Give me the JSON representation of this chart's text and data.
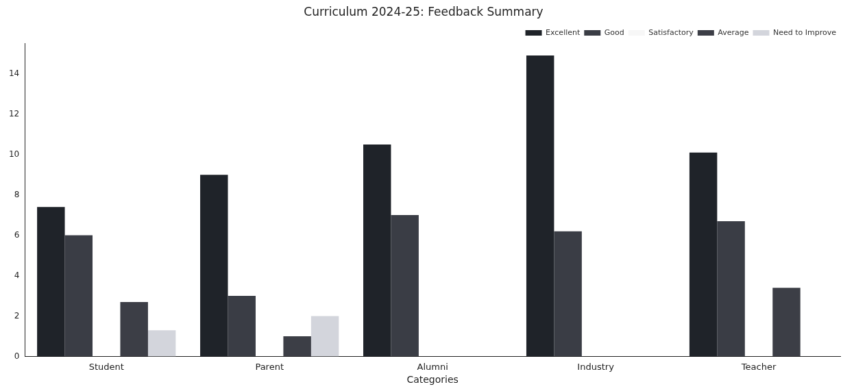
{
  "chart_data": {
    "type": "bar",
    "title": "Curriculum 2024-25: Feedback Summary",
    "xlabel": "Categories",
    "categories": [
      "Student",
      "Parent",
      "Alumni",
      "Industry",
      "Teacher"
    ],
    "series": [
      {
        "name": "Excellent",
        "color": "#1f2329",
        "values": [
          7.4,
          9.0,
          10.5,
          14.9,
          10.1
        ]
      },
      {
        "name": "Good",
        "color": "#3a3d45",
        "values": [
          6.0,
          3.0,
          7.0,
          6.2,
          6.7
        ]
      },
      {
        "name": "Satisfactory",
        "color": "#f7f7f7",
        "values": [
          0,
          0,
          0,
          0,
          0
        ]
      },
      {
        "name": "Average",
        "color": "#3c3e46",
        "values": [
          2.7,
          1.0,
          0,
          0,
          3.4
        ]
      },
      {
        "name": "Need to Improve",
        "color": "#d3d5dc",
        "values": [
          1.3,
          2.0,
          0,
          0,
          0
        ]
      }
    ],
    "ylim": [
      0,
      15.5
    ],
    "yticks": [
      0,
      2,
      4,
      6,
      8,
      10,
      12,
      14
    ],
    "grid": false,
    "legend": "top right"
  }
}
